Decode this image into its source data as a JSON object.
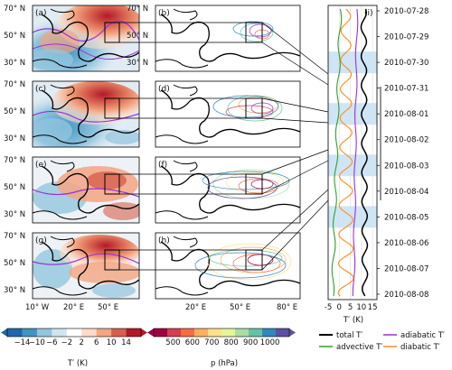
{
  "panels": {
    "a": "(a)",
    "b": "(b)",
    "c": "(c)",
    "d": "(d)",
    "e": "(e)",
    "f": "(f)",
    "g": "(g)",
    "h": "(h)",
    "i": "(i)"
  },
  "lat_labels": [
    "70° N",
    "50° N",
    "30° N"
  ],
  "lon_labels": [
    "10° W",
    "20° E",
    "50° E",
    "20° E",
    "50° E",
    "80° E"
  ],
  "timeline": {
    "dates": [
      "2010-07-28",
      "2010-07-29",
      "2010-07-30",
      "2010-07-31",
      "2010-08-01",
      "2010-08-02",
      "2010-08-03",
      "2010-08-04",
      "2010-08-05",
      "2010-08-06",
      "2010-08-07",
      "2010-08-08"
    ],
    "x_ticks": [
      "-5",
      "0",
      "5",
      "10",
      "15"
    ],
    "x_label": "T′ (K)"
  },
  "colorbar_temp": {
    "ticks": [
      "−14",
      "−10",
      "−6",
      "−2",
      "2",
      "6",
      "10",
      "14"
    ],
    "label": "T′ (K)",
    "colors": [
      "#2166ac",
      "#4393c3",
      "#92c5de",
      "#d1e5f0",
      "#ffffff",
      "#fddbc7",
      "#f4a582",
      "#d6604d",
      "#b2182b"
    ]
  },
  "colorbar_pressure": {
    "ticks": [
      "500",
      "600",
      "700",
      "800",
      "900",
      "1000"
    ],
    "label": "p (hPa)",
    "colors": [
      "#9e0142",
      "#d53e4f",
      "#f46d43",
      "#fdae61",
      "#fee08b",
      "#e6f598",
      "#abdda4",
      "#66c2a5",
      "#3288bd",
      "#5e4fa2"
    ]
  },
  "legend": {
    "total": "total T′",
    "advective": "advective T′",
    "adiabatic": "adiabatic T′",
    "diabatic": "diabatic T′"
  },
  "series_colors": {
    "total": "#000000",
    "advective": "#2ca02c",
    "adiabatic": "#9b30d9",
    "diabatic": "#ff8c1a"
  },
  "highlight_color": "#cfe5f5"
}
